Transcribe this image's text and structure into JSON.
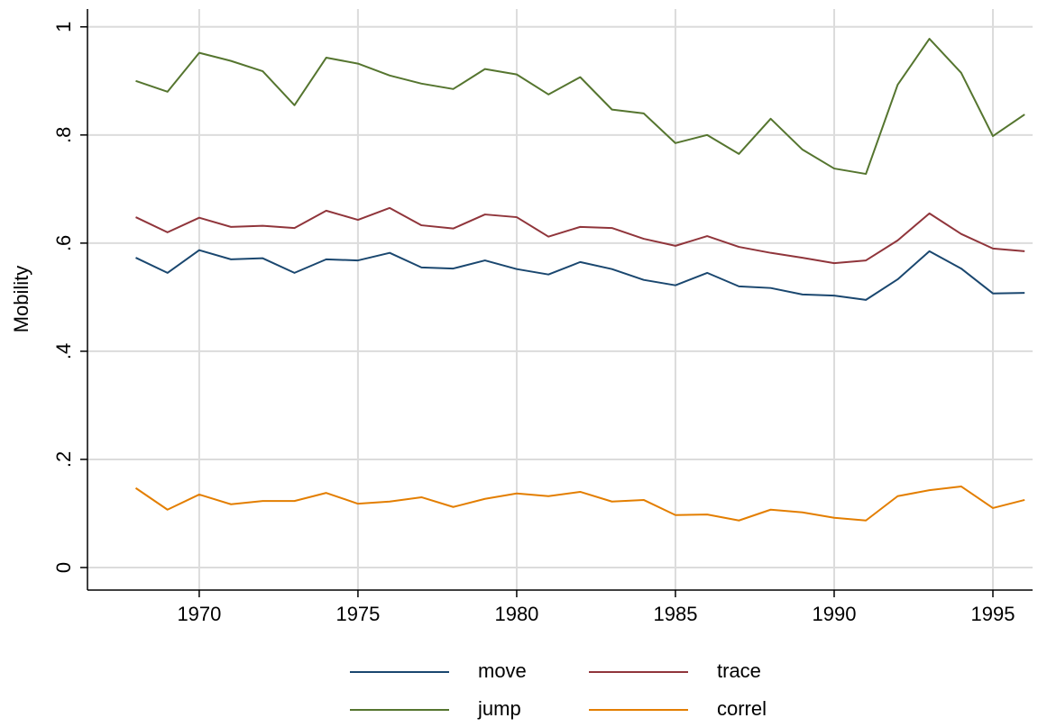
{
  "chart_data": {
    "type": "line",
    "y_label": "Mobility",
    "x": [
      1968,
      1969,
      1970,
      1971,
      1972,
      1973,
      1974,
      1975,
      1976,
      1977,
      1978,
      1979,
      1980,
      1981,
      1982,
      1983,
      1984,
      1985,
      1986,
      1987,
      1988,
      1989,
      1990,
      1991,
      1992,
      1993,
      1994,
      1995,
      1996
    ],
    "series": [
      {
        "name": "move",
        "color": "#1a476f",
        "values": [
          0.573,
          0.545,
          0.587,
          0.57,
          0.572,
          0.545,
          0.57,
          0.568,
          0.582,
          0.555,
          0.553,
          0.568,
          0.552,
          0.542,
          0.565,
          0.552,
          0.532,
          0.522,
          0.545,
          0.52,
          0.517,
          0.505,
          0.503,
          0.495,
          0.533,
          0.585,
          0.553,
          0.507,
          0.508
        ]
      },
      {
        "name": "trace",
        "color": "#90353b",
        "values": [
          0.648,
          0.62,
          0.647,
          0.63,
          0.632,
          0.628,
          0.66,
          0.643,
          0.665,
          0.633,
          0.627,
          0.653,
          0.648,
          0.612,
          0.63,
          0.628,
          0.608,
          0.595,
          0.613,
          0.593,
          0.582,
          0.573,
          0.563,
          0.568,
          0.605,
          0.655,
          0.617,
          0.59,
          0.585
        ]
      },
      {
        "name": "jump",
        "color": "#55752f",
        "values": [
          0.9,
          0.88,
          0.952,
          0.937,
          0.918,
          0.855,
          0.943,
          0.932,
          0.91,
          0.895,
          0.885,
          0.922,
          0.912,
          0.875,
          0.907,
          0.847,
          0.84,
          0.785,
          0.8,
          0.765,
          0.83,
          0.773,
          0.738,
          0.728,
          0.893,
          0.978,
          0.915,
          0.798,
          0.838
        ]
      },
      {
        "name": "correl",
        "color": "#e37e00",
        "values": [
          0.147,
          0.107,
          0.135,
          0.117,
          0.123,
          0.123,
          0.138,
          0.118,
          0.122,
          0.13,
          0.112,
          0.127,
          0.137,
          0.132,
          0.14,
          0.122,
          0.125,
          0.097,
          0.098,
          0.087,
          0.107,
          0.102,
          0.092,
          0.087,
          0.132,
          0.143,
          0.15,
          0.11,
          0.125
        ]
      }
    ],
    "xlim": [
      1966.48,
      1996.25
    ],
    "ylim": [
      -0.0417,
      1.033
    ],
    "xticks": [
      1970,
      1975,
      1980,
      1985,
      1990,
      1995
    ],
    "yticks": [
      0,
      {
        "value": 0.2,
        "label": ".2"
      },
      {
        "value": 0.4,
        "label": ".4"
      },
      {
        "value": 0.6,
        "label": ".6"
      },
      {
        "value": 0.8,
        "label": ".8"
      },
      1
    ],
    "grid": true,
    "legend": "bottom"
  }
}
